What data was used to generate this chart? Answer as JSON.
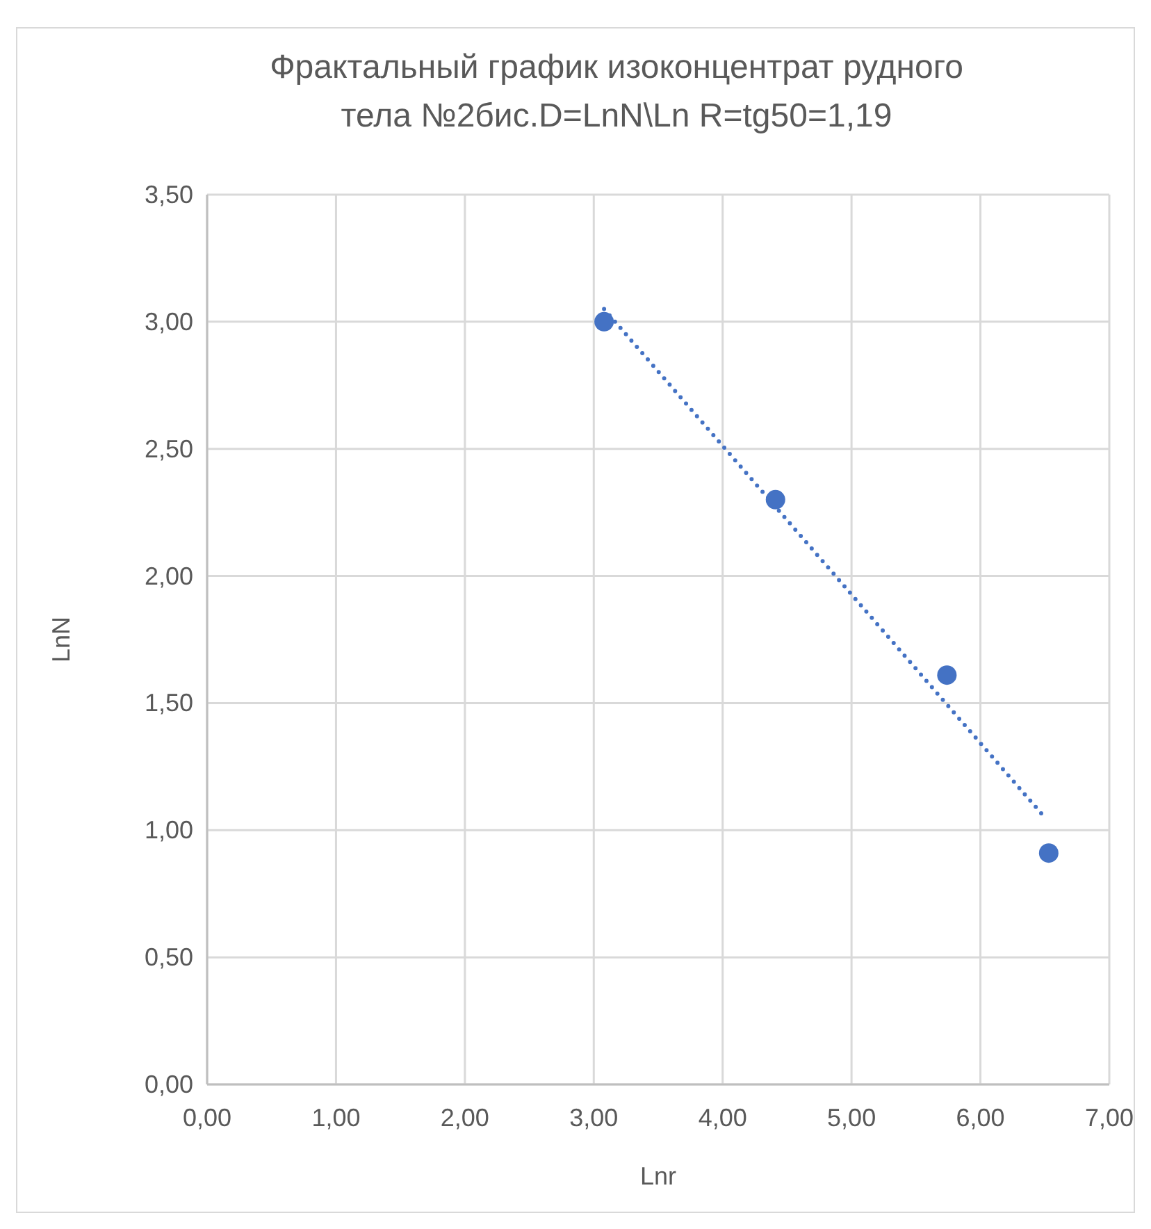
{
  "chart_data": {
    "type": "scatter",
    "title": "Фрактальный график изоконцентрат рудного\nтела №2бис.D=LnN\\Ln R=tg50=1,19",
    "xlabel": "Lnr",
    "ylabel": "LnN",
    "xlim": [
      0,
      7
    ],
    "ylim": [
      0,
      3.5
    ],
    "xticks": [
      {
        "value": 0,
        "label": "0,00"
      },
      {
        "value": 1,
        "label": "1,00"
      },
      {
        "value": 2,
        "label": "2,00"
      },
      {
        "value": 3,
        "label": "3,00"
      },
      {
        "value": 4,
        "label": "4,00"
      },
      {
        "value": 5,
        "label": "5,00"
      },
      {
        "value": 6,
        "label": "6,00"
      },
      {
        "value": 7,
        "label": "7,00"
      }
    ],
    "yticks": [
      {
        "value": 0,
        "label": "0,00"
      },
      {
        "value": 0.5,
        "label": "0,50"
      },
      {
        "value": 1,
        "label": "1,00"
      },
      {
        "value": 1.5,
        "label": "1,50"
      },
      {
        "value": 2,
        "label": "2,00"
      },
      {
        "value": 2.5,
        "label": "2,50"
      },
      {
        "value": 3,
        "label": "3,00"
      },
      {
        "value": 3.5,
        "label": "3,50"
      }
    ],
    "grid": true,
    "series": [
      {
        "type": "scatter",
        "color": "#4472c4",
        "marker": "circle",
        "x": [
          3.08,
          4.41,
          5.74,
          6.53
        ],
        "values": [
          3.0,
          2.3,
          1.61,
          0.91
        ]
      },
      {
        "type": "line",
        "color": "#4472c4",
        "marker": "none",
        "line_style": "dotted",
        "x": [
          3.08,
          6.5
        ],
        "values": [
          3.05,
          1.05
        ]
      }
    ]
  }
}
